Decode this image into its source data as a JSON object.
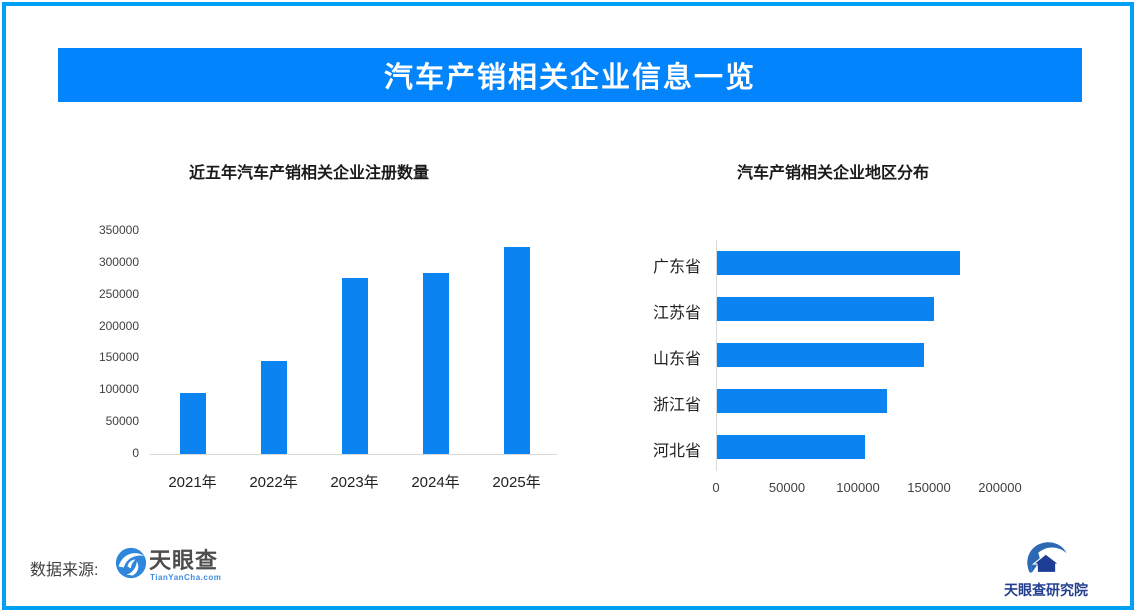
{
  "banner": {
    "title": "汽车产销相关企业信息一览",
    "bg": "#0284fc"
  },
  "colors": {
    "border": "#00a1f4",
    "bar": "#0b83f1",
    "axis": "#d9d9d9"
  },
  "footer": {
    "source_label": "数据来源:",
    "tyc_logo_text": "天眼查",
    "tyc_logo_sub": "TianYanCha.com",
    "institute_text": "天眼查研究院"
  },
  "chart_data": [
    {
      "type": "bar",
      "orientation": "vertical",
      "title": "近五年汽车产销相关企业注册数量",
      "categories": [
        "2021年",
        "2022年",
        "2023年",
        "2024年",
        "2025年"
      ],
      "values": [
        95000,
        146000,
        277000,
        284000,
        325000
      ],
      "ylim": [
        0,
        350000
      ],
      "ytick_step": 50000,
      "grid": false,
      "legend": false
    },
    {
      "type": "bar",
      "orientation": "horizontal",
      "title": "汽车产销相关企业地区分布",
      "categories": [
        "广东省",
        "江苏省",
        "山东省",
        "浙江省",
        "河北省"
      ],
      "values": [
        171000,
        153000,
        146000,
        120000,
        104000
      ],
      "xlim": [
        0,
        200000
      ],
      "xtick_step": 50000,
      "grid": false,
      "legend": false
    }
  ]
}
